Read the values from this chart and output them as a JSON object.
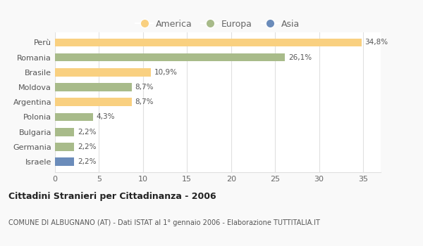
{
  "categories": [
    "Israele",
    "Germania",
    "Bulgaria",
    "Polonia",
    "Argentina",
    "Moldova",
    "Brasile",
    "Romania",
    "Perù"
  ],
  "values": [
    2.2,
    2.2,
    2.2,
    4.3,
    8.7,
    8.7,
    10.9,
    26.1,
    34.8
  ],
  "colors": [
    "#6b8cba",
    "#a8bb8a",
    "#a8bb8a",
    "#a8bb8a",
    "#f9d080",
    "#a8bb8a",
    "#f9d080",
    "#a8bb8a",
    "#f9d080"
  ],
  "labels": [
    "2,2%",
    "2,2%",
    "2,2%",
    "4,3%",
    "8,7%",
    "8,7%",
    "10,9%",
    "26,1%",
    "34,8%"
  ],
  "legend_labels": [
    "America",
    "Europa",
    "Asia"
  ],
  "legend_colors": [
    "#f9d080",
    "#a8bb8a",
    "#6b8cba"
  ],
  "title": "Cittadini Stranieri per Cittadinanza - 2006",
  "subtitle": "COMUNE DI ALBUGNANO (AT) - Dati ISTAT al 1° gennaio 2006 - Elaborazione TUTTITALIA.IT",
  "xlim": [
    0,
    37
  ],
  "xticks": [
    0,
    5,
    10,
    15,
    20,
    25,
    30,
    35
  ],
  "background_color": "#f9f9f9",
  "bar_background": "#ffffff",
  "grid_color": "#e0e0e0"
}
